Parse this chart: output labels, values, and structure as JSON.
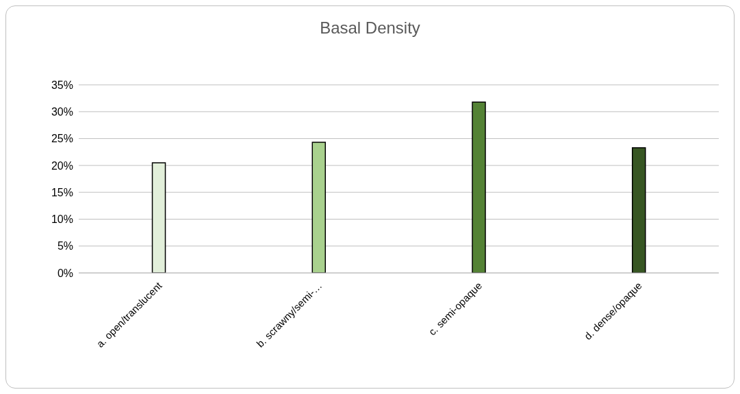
{
  "chart_data": {
    "type": "bar",
    "title": "Basal Density",
    "categories": [
      "a. open/translucent",
      "b. scrawny/semi-…",
      "c. semi-opaque",
      "d. dense/opaque"
    ],
    "values": [
      20.5,
      24.3,
      31.8,
      23.3
    ],
    "colors": [
      "#e2efda",
      "#a9d18e",
      "#548235",
      "#375623"
    ],
    "ylim": [
      0,
      35
    ],
    "yticks": [
      {
        "value": 0,
        "label": "0%"
      },
      {
        "value": 5,
        "label": "5%"
      },
      {
        "value": 10,
        "label": "10%"
      },
      {
        "value": 15,
        "label": "15%"
      },
      {
        "value": 20,
        "label": "20%"
      },
      {
        "value": 25,
        "label": "25%"
      },
      {
        "value": 30,
        "label": "30%"
      },
      {
        "value": 35,
        "label": "35%"
      }
    ],
    "grid": "y",
    "legend": false
  }
}
